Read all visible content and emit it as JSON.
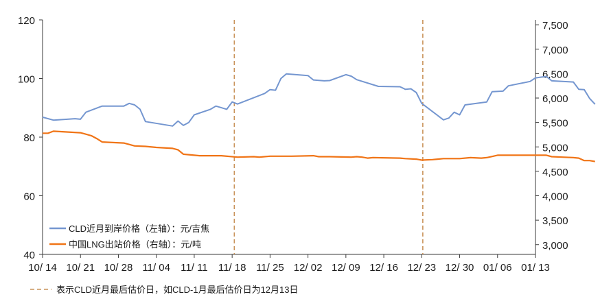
{
  "chart_data": {
    "type": "line",
    "title": "",
    "x_ticks": [
      "10/ 14",
      "10/ 21",
      "10/ 28",
      "11/ 04",
      "11/ 11",
      "11/ 18",
      "11/ 25",
      "12/ 02",
      "12/ 09",
      "12/ 16",
      "12/ 23",
      "12/ 30",
      "01/ 06",
      "01/ 13"
    ],
    "x_range": [
      "10/14",
      "01/13"
    ],
    "y_left": {
      "min": 40,
      "max": 120,
      "ticks": [
        40,
        60,
        80,
        100,
        120
      ]
    },
    "y_right": {
      "min": 2800,
      "max": 7600,
      "ticks": [
        "3,000",
        "3,500",
        "4,000",
        "4,500",
        "5,000",
        "5,500",
        "6,000",
        "6,500",
        "7,000",
        "7,500"
      ],
      "tick_values": [
        3000,
        3500,
        4000,
        4500,
        5000,
        5500,
        6000,
        6500,
        7000,
        7500
      ]
    },
    "series": [
      {
        "name": "CLD近月到岸价格（左轴）：元/吉焦",
        "axis": "left",
        "color": "#7496d0",
        "points": [
          [
            0,
            86.8
          ],
          [
            2,
            85.8
          ],
          [
            6,
            86.3
          ],
          [
            7,
            86.1
          ],
          [
            8,
            88.5
          ],
          [
            11,
            90.6
          ],
          [
            15,
            90.6
          ],
          [
            16,
            91.5
          ],
          [
            17,
            91
          ],
          [
            18,
            89.5
          ],
          [
            19,
            85.3
          ],
          [
            24,
            83.8
          ],
          [
            25,
            85.5
          ],
          [
            26,
            84
          ],
          [
            27,
            85
          ],
          [
            28,
            87.6
          ],
          [
            31,
            89.5
          ],
          [
            32,
            90.6
          ],
          [
            34,
            89.5
          ],
          [
            35,
            92
          ],
          [
            36,
            91.3
          ],
          [
            41,
            94.9
          ],
          [
            42,
            96.2
          ],
          [
            43,
            96.0
          ],
          [
            44,
            100
          ],
          [
            45,
            101.6
          ],
          [
            49,
            101
          ],
          [
            50,
            99.5
          ],
          [
            52,
            99.2
          ],
          [
            53,
            99.3
          ],
          [
            56,
            101.3
          ],
          [
            57,
            100.8
          ],
          [
            58,
            99.6
          ],
          [
            62,
            97.3
          ],
          [
            66,
            97.2
          ],
          [
            67,
            96.3
          ],
          [
            68,
            96.5
          ],
          [
            69,
            95.2
          ],
          [
            70,
            91.5
          ],
          [
            74,
            85.9
          ],
          [
            75,
            86.5
          ],
          [
            76,
            88.5
          ],
          [
            77,
            87.6
          ],
          [
            78,
            91
          ],
          [
            82,
            92
          ],
          [
            83,
            95.5
          ],
          [
            85,
            95.7
          ],
          [
            86,
            97.5
          ],
          [
            90,
            99
          ],
          [
            91,
            100.2
          ],
          [
            93,
            100.7
          ],
          [
            94,
            99.2
          ],
          [
            98,
            98.8
          ],
          [
            99,
            96.3
          ],
          [
            100,
            96.2
          ],
          [
            101,
            93.2
          ],
          [
            102,
            91.2
          ]
        ]
      },
      {
        "name": "中国LNG出站价格（右轴）：元/吨",
        "axis": "right",
        "color": "#f07416",
        "points": [
          [
            0,
            5280
          ],
          [
            1,
            5280
          ],
          [
            2,
            5320
          ],
          [
            7,
            5290
          ],
          [
            9,
            5230
          ],
          [
            10,
            5170
          ],
          [
            11,
            5100
          ],
          [
            15,
            5080
          ],
          [
            17,
            5020
          ],
          [
            19,
            5010
          ],
          [
            21,
            4990
          ],
          [
            24,
            4970
          ],
          [
            25,
            4940
          ],
          [
            26,
            4850
          ],
          [
            29,
            4820
          ],
          [
            33,
            4820
          ],
          [
            36,
            4790
          ],
          [
            39,
            4800
          ],
          [
            40,
            4790
          ],
          [
            42,
            4810
          ],
          [
            46,
            4810
          ],
          [
            50,
            4820
          ],
          [
            51,
            4800
          ],
          [
            53,
            4800
          ],
          [
            57,
            4790
          ],
          [
            58,
            4800
          ],
          [
            59,
            4790
          ],
          [
            60,
            4770
          ],
          [
            61,
            4780
          ],
          [
            66,
            4770
          ],
          [
            67,
            4760
          ],
          [
            69,
            4750
          ],
          [
            70,
            4730
          ],
          [
            72,
            4740
          ],
          [
            74,
            4760
          ],
          [
            77,
            4760
          ],
          [
            79,
            4780
          ],
          [
            81,
            4770
          ],
          [
            82,
            4780
          ],
          [
            84,
            4830
          ],
          [
            93,
            4830
          ],
          [
            94,
            4800
          ],
          [
            96,
            4790
          ],
          [
            98,
            4780
          ],
          [
            99,
            4770
          ],
          [
            100,
            4720
          ],
          [
            101,
            4720
          ],
          [
            102,
            4700
          ]
        ]
      }
    ],
    "vlines": [
      {
        "x": 35.4,
        "color": "#c9935a"
      },
      {
        "x": 70.2,
        "color": "#c9935a"
      }
    ],
    "legend": [
      {
        "label": "CLD近月到岸价格（左轴）：元/吉焦",
        "color": "#7496d0"
      },
      {
        "label": "中国LNG出站价格（右轴）：元/吨",
        "color": "#f07416"
      }
    ],
    "note": {
      "label": "表示CLD近月最后估价日，如CLD-1月最后估价日为12月13日",
      "color": "#c9935a"
    },
    "grid": false
  }
}
